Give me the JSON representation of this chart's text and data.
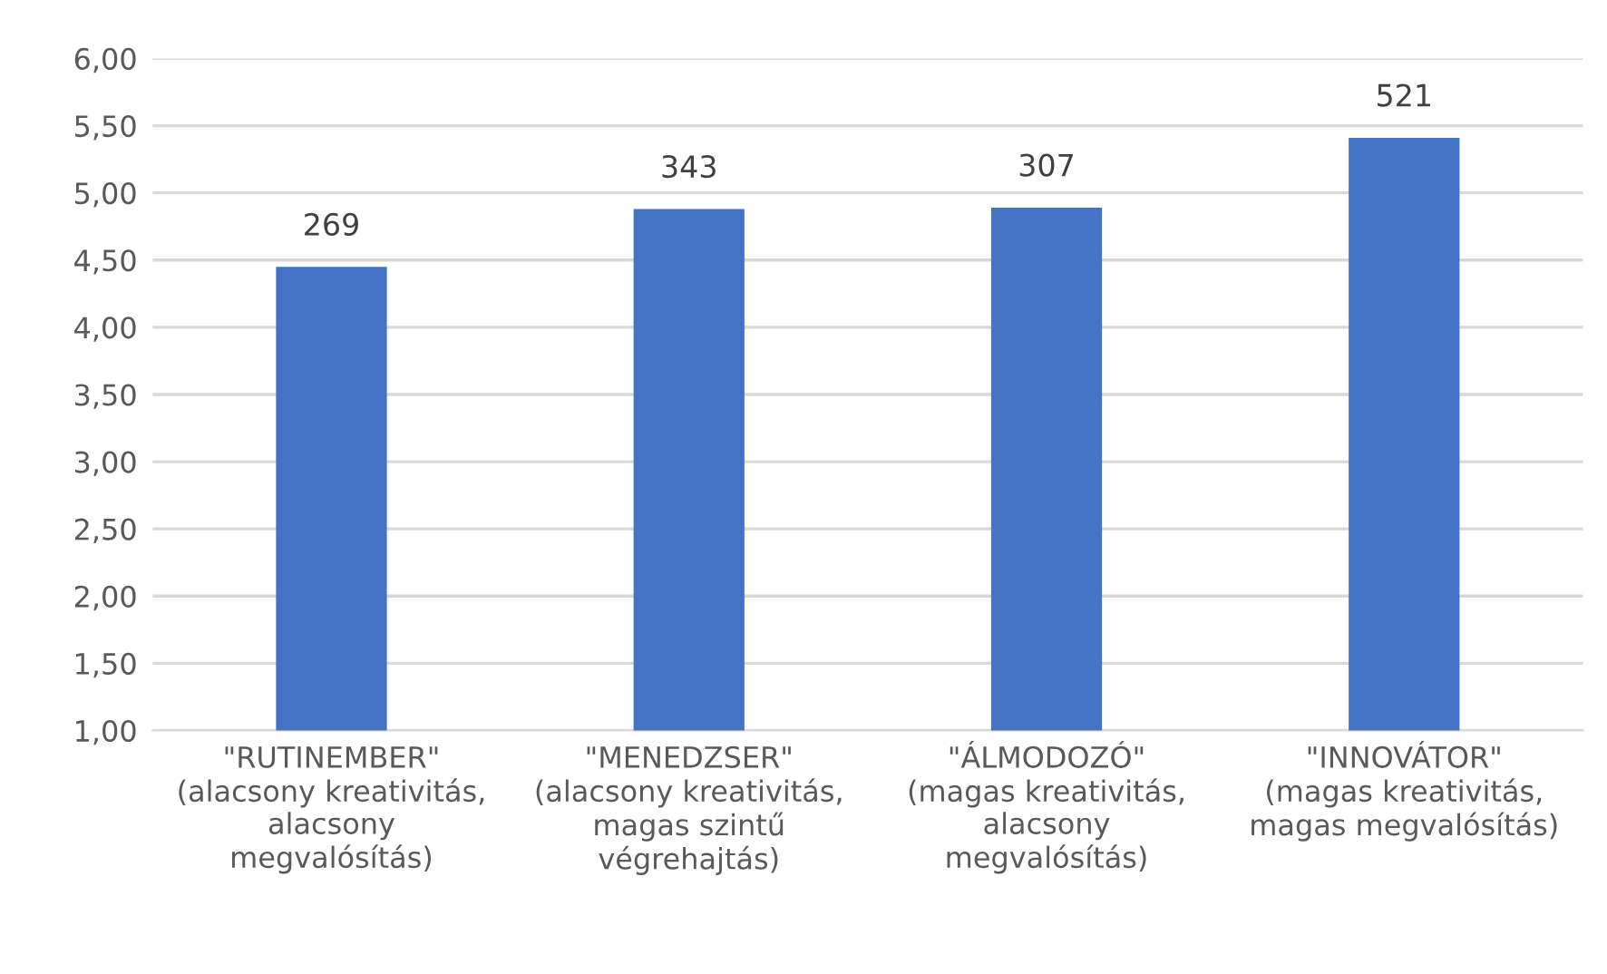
{
  "chart_data": {
    "type": "bar",
    "categories": [
      "\"RUTINEMBER\"\n(alacsony kreativitás,\nalacsony\nmegvalósítás)",
      "\"MENEDZSER\"\n(alacsony kreativitás,\nmagas szintű\nvégrehajtás)",
      "\"ÁLMODOZÓ\"\n(magas kreativitás,\nalacsony\nmegvalósítás)",
      "\"INNOVÁTOR\"\n(magas kreativitás,\nmagas megvalósítás)"
    ],
    "values": [
      4.45,
      4.88,
      4.89,
      5.41
    ],
    "annotations": [
      {
        "text": "269",
        "x": "\"RUTINEMBER\"\n(alacsony kreativitás,\nalacsony\nmegvalósítás)",
        "y": 4.45
      },
      {
        "text": "343",
        "x": "\"MENEDZSER\"\n(alacsony kreativitás,\nmagas szintű\nvégrehajtás)",
        "y": 4.88
      },
      {
        "text": "307",
        "x": "\"ÁLMODOZÓ\"\n(magas kreativitás,\nalacsony\nmegvalósítás)",
        "y": 4.89
      },
      {
        "text": "521",
        "x": "\"INNOVÁTOR\"\n(magas kreativitás,\nmagas megvalósítás)",
        "y": 5.41
      }
    ],
    "color": "#4472c4",
    "ylim": [
      1,
      6
    ],
    "yticks": [
      {
        "value": 1,
        "label": "1,00"
      },
      {
        "value": 1.5,
        "label": "1,50"
      },
      {
        "value": 2,
        "label": "2,00"
      },
      {
        "value": 2.5,
        "label": "2,50"
      },
      {
        "value": 3,
        "label": "3,00"
      },
      {
        "value": 3.5,
        "label": "3,50"
      },
      {
        "value": 4,
        "label": "4,00"
      },
      {
        "value": 4.5,
        "label": "4,50"
      },
      {
        "value": 5,
        "label": "5,00"
      },
      {
        "value": 5.5,
        "label": "5,50"
      },
      {
        "value": 6,
        "label": "6,00"
      }
    ],
    "grid": "y"
  }
}
